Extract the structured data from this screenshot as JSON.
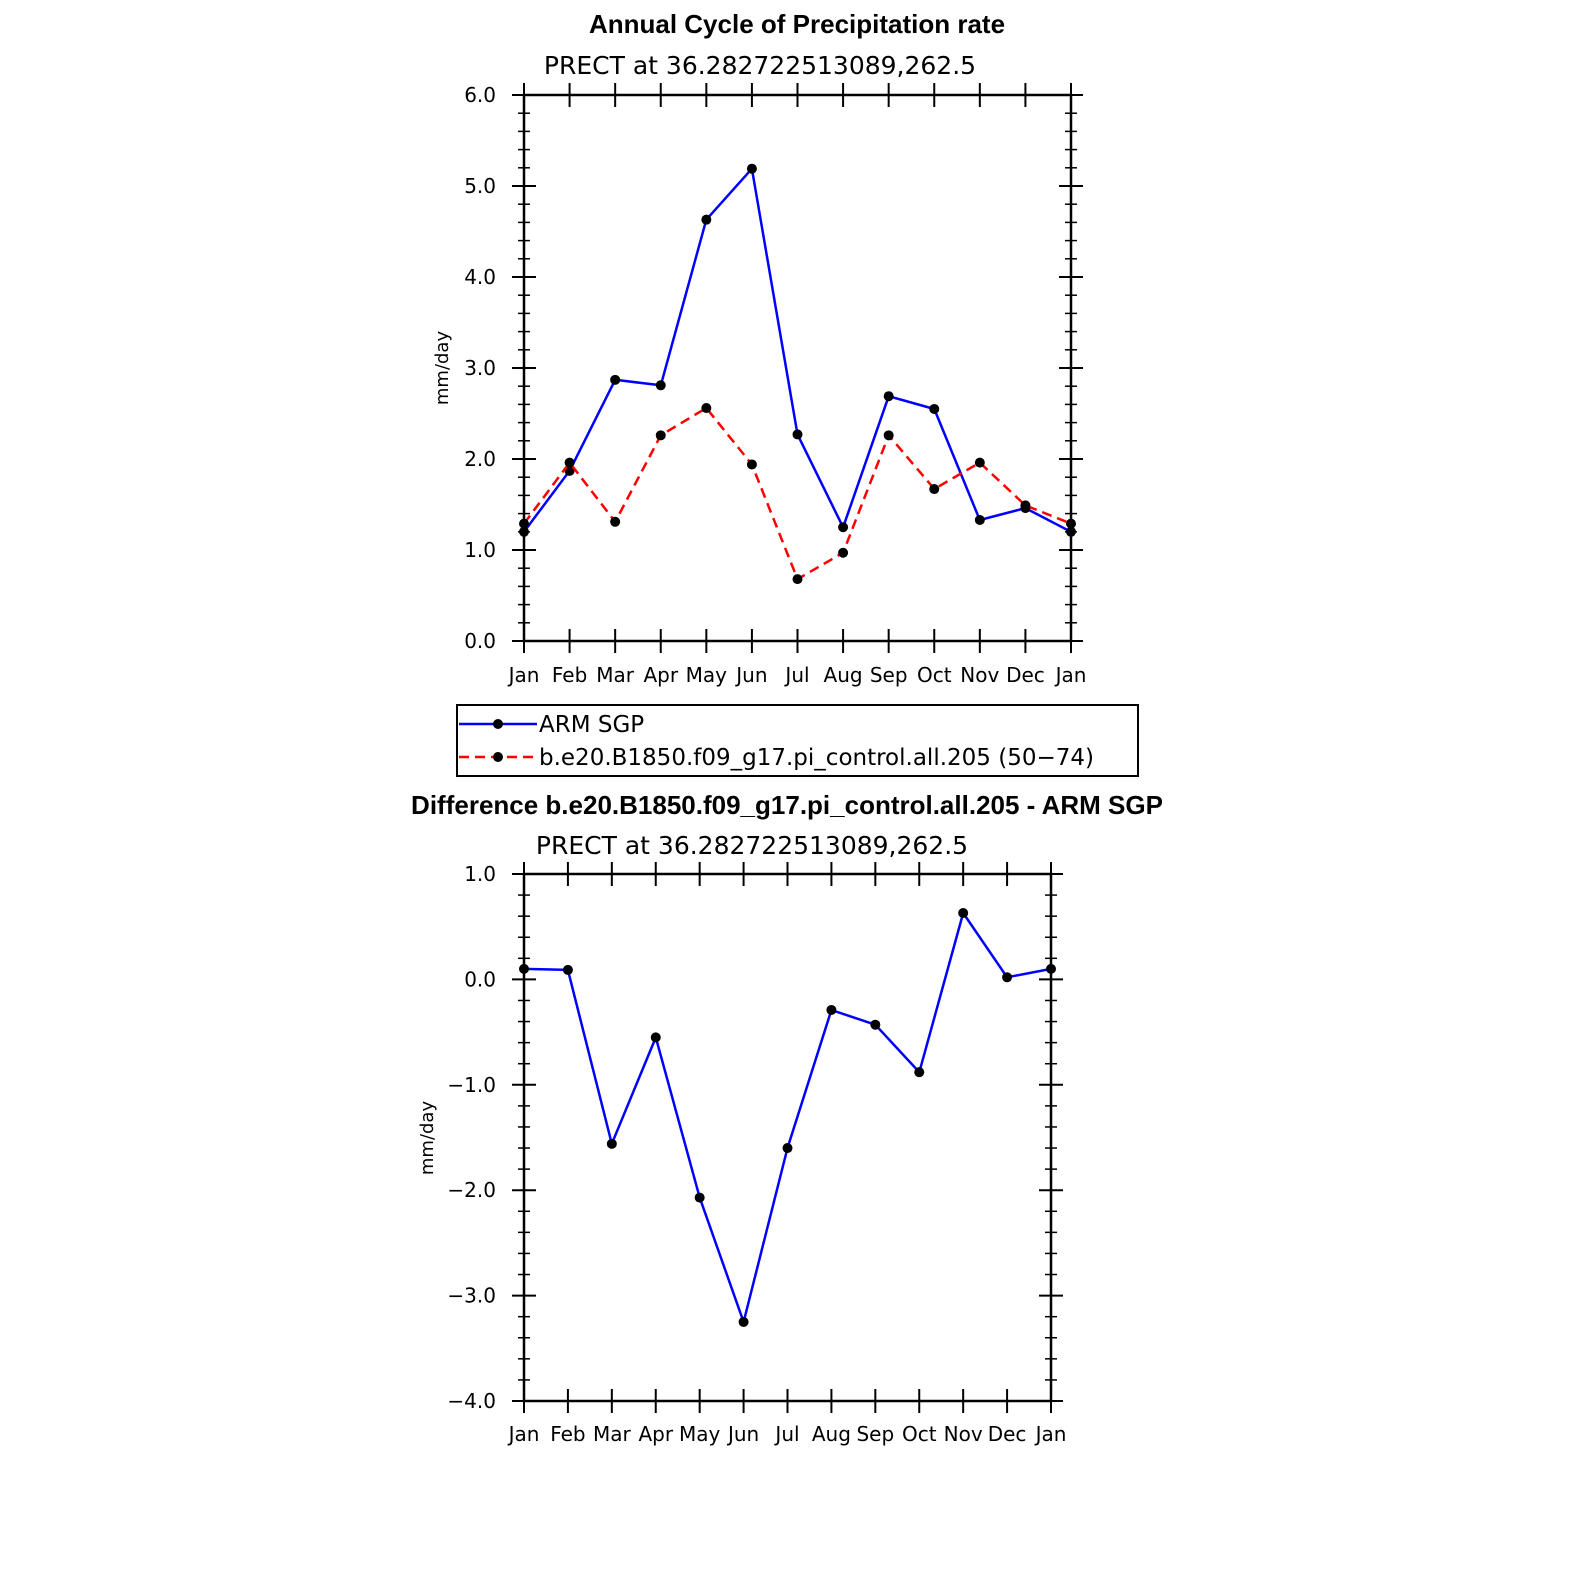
{
  "chart_data": [
    {
      "type": "line",
      "title": "Annual Cycle of Precipitation rate",
      "subtitle": "PRECT at 36.282722513089,262.5",
      "ylabel": "mm/day",
      "xlabel": "",
      "categories": [
        "Jan",
        "Feb",
        "Mar",
        "Apr",
        "May",
        "Jun",
        "Jul",
        "Aug",
        "Sep",
        "Oct",
        "Nov",
        "Dec",
        "Jan"
      ],
      "ylim": [
        0,
        6
      ],
      "yticks": [
        "0.0",
        "1.0",
        "2.0",
        "3.0",
        "4.0",
        "5.0",
        "6.0"
      ],
      "series": [
        {
          "name": "ARM SGP",
          "color": "#0000ff",
          "dash": "solid",
          "values": [
            1.2,
            1.87,
            2.87,
            2.81,
            4.63,
            5.19,
            2.27,
            1.25,
            2.69,
            2.55,
            1.33,
            1.46,
            1.2
          ]
        },
        {
          "name": "b.e20.B1850.f09_g17.pi_control.all.205 (50−74)",
          "color": "#ff0000",
          "dash": "dashed",
          "values": [
            1.29,
            1.96,
            1.31,
            2.26,
            2.56,
            1.94,
            0.68,
            0.97,
            2.26,
            1.67,
            1.96,
            1.49,
            1.29
          ]
        }
      ],
      "legend_position": "bottom"
    },
    {
      "type": "line",
      "title": "Difference b.e20.B1850.f09_g17.pi_control.all.205 - ARM SGP",
      "subtitle": "PRECT at 36.282722513089,262.5",
      "ylabel": "mm/day",
      "xlabel": "",
      "categories": [
        "Jan",
        "Feb",
        "Mar",
        "Apr",
        "May",
        "Jun",
        "Jul",
        "Aug",
        "Sep",
        "Oct",
        "Nov",
        "Dec",
        "Jan"
      ],
      "ylim": [
        -4,
        1
      ],
      "yticks": [
        "−4.0",
        "−3.0",
        "−2.0",
        "−1.0",
        "0.0",
        "1.0"
      ],
      "series": [
        {
          "color": "#0000ff",
          "dash": "solid",
          "values": [
            0.1,
            0.09,
            -1.56,
            -0.55,
            -2.07,
            -3.25,
            -1.6,
            -0.29,
            -0.43,
            -0.88,
            0.63,
            0.02,
            0.1
          ]
        }
      ]
    }
  ]
}
